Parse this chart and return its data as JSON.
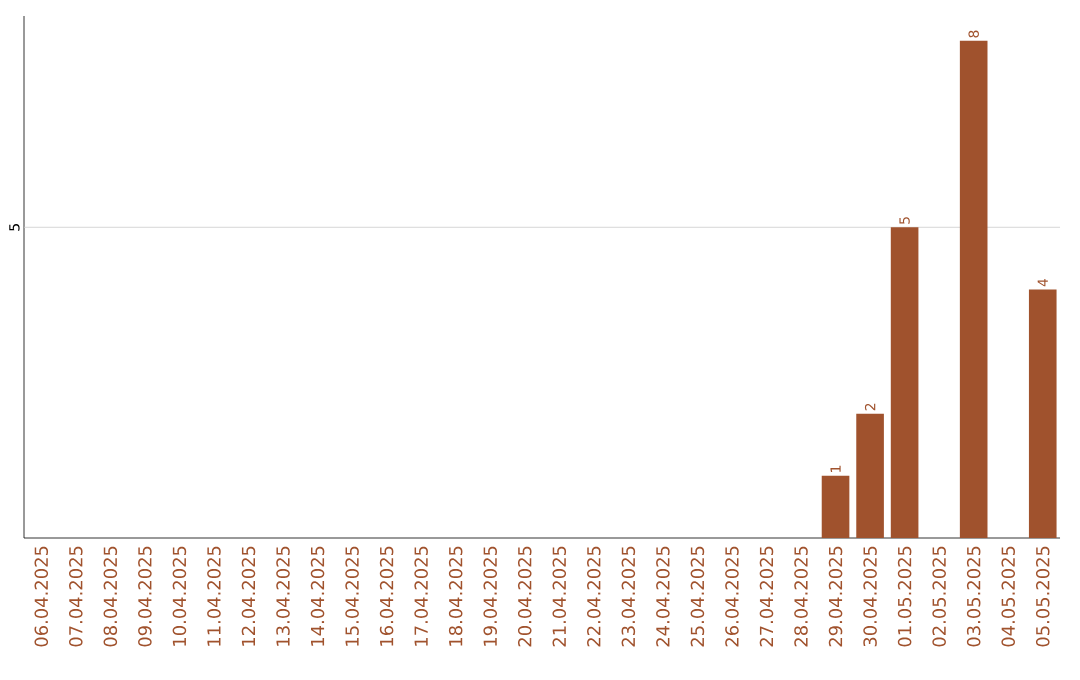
{
  "chart_data": {
    "type": "bar",
    "categories": [
      "06.04.2025",
      "07.04.2025",
      "08.04.2025",
      "09.04.2025",
      "10.04.2025",
      "11.04.2025",
      "12.04.2025",
      "13.04.2025",
      "14.04.2025",
      "15.04.2025",
      "16.04.2025",
      "17.04.2025",
      "18.04.2025",
      "19.04.2025",
      "20.04.2025",
      "21.04.2025",
      "22.04.2025",
      "23.04.2025",
      "24.04.2025",
      "25.04.2025",
      "26.04.2025",
      "27.04.2025",
      "28.04.2025",
      "29.04.2025",
      "30.04.2025",
      "01.05.2025",
      "02.05.2025",
      "03.05.2025",
      "04.05.2025",
      "05.05.2025"
    ],
    "values": [
      null,
      null,
      null,
      null,
      null,
      null,
      null,
      null,
      null,
      null,
      null,
      null,
      null,
      null,
      null,
      null,
      null,
      null,
      null,
      null,
      null,
      null,
      null,
      1,
      2,
      5,
      null,
      8,
      null,
      4
    ],
    "data_labels": true,
    "color": "#a0522d",
    "ylim": [
      0,
      8.4
    ],
    "ref_lines": [
      {
        "axis": "y",
        "value": 5,
        "label": "5",
        "color": "#cccccc"
      }
    ]
  }
}
